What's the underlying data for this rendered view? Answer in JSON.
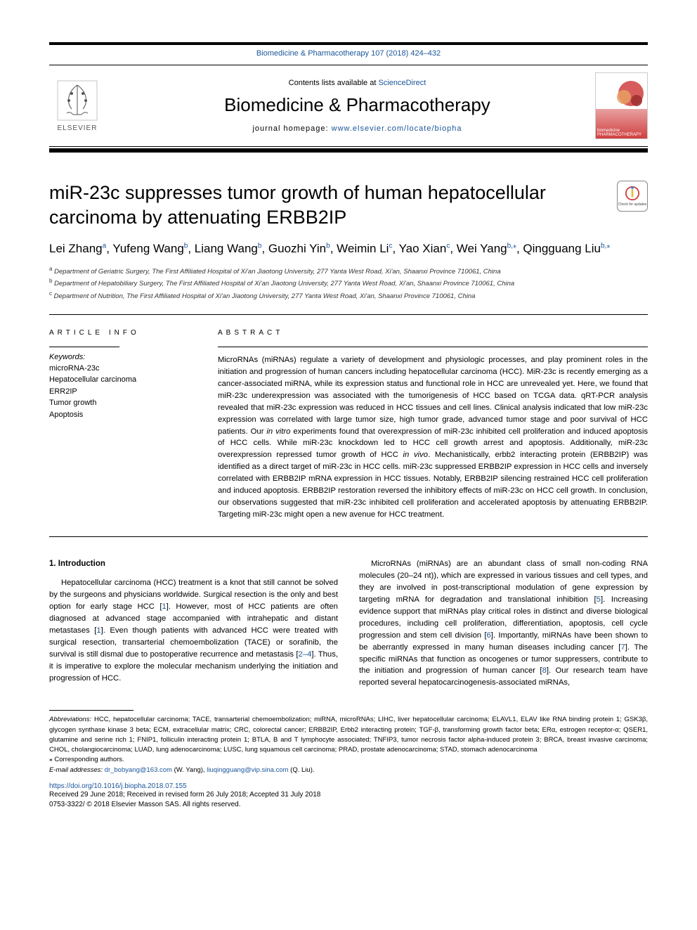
{
  "journal_ref": {
    "prefix": "Biomedicine & Pharmacotherapy 107 (2018) 424–432",
    "link_text": "Biomedicine & Pharmacotherapy 107 (2018) 424–432"
  },
  "header": {
    "contents_prefix": "Contents lists available at ",
    "contents_link": "ScienceDirect",
    "journal_title": "Biomedicine & Pharmacotherapy",
    "homepage_prefix": "journal homepage: ",
    "homepage_link": "www.elsevier.com/locate/biopha",
    "elsevier_label": "ELSEVIER",
    "cover_label": "biomedicine PHARMACOTHERAPY"
  },
  "check_updates_label": "Check for updates",
  "article": {
    "title": "miR-23c suppresses tumor growth of human hepatocellular carcinoma by attenuating ERBB2IP",
    "authors_html": "Lei Zhang<span class='sup'>a</span>, Yufeng Wang<span class='sup'>b</span>, Liang Wang<span class='sup'>b</span>, Guozhi Yin<span class='sup'>b</span>, Weimin Li<span class='sup'>c</span>, Yao Xian<span class='sup'>c</span>, Wei Yang<span class='sup'>b,</span><span class='sup star'>⁎</span>, Qingguang Liu<span class='sup'>b,</span><span class='sup star'>⁎</span>",
    "affiliations": [
      {
        "label": "a",
        "text": "Department of Geriatric Surgery, The First Affiliated Hospital of Xi'an Jiaotong University, 277 Yanta West Road, Xi'an, Shaanxi Province 710061, China"
      },
      {
        "label": "b",
        "text": "Department of Hepatobiliary Surgery, The First Affiliated Hospital of Xi'an Jiaotong University, 277 Yanta West Road, Xi'an, Shaanxi Province 710061, China"
      },
      {
        "label": "c",
        "text": "Department of Nutrition, The First Affiliated Hospital of Xi'an Jiaotong University, 277 Yanta West Road, Xi'an, Shaanxi Province 710061, China"
      }
    ]
  },
  "article_info": {
    "label": "ARTICLE INFO",
    "keywords_label": "Keywords:",
    "keywords": [
      "microRNA-23c",
      "Hepatocellular carcinoma",
      "ERR2IP",
      "Tumor growth",
      "Apoptosis"
    ]
  },
  "abstract": {
    "label": "ABSTRACT",
    "text": "MicroRNAs (miRNAs) regulate a variety of development and physiologic processes, and play prominent roles in the initiation and progression of human cancers including hepatocellular carcinoma (HCC). MiR-23c is recently emerging as a cancer-associated miRNA, while its expression status and functional role in HCC are unrevealed yet. Here, we found that miR-23c underexpression was associated with the tumorigenesis of HCC based on TCGA data. qRT-PCR analysis revealed that miR-23c expression was reduced in HCC tissues and cell lines. Clinical analysis indicated that low miR-23c expression was correlated with large tumor size, high tumor grade, advanced tumor stage and poor survival of HCC patients. Our in vitro experiments found that overexpression of miR-23c inhibited cell proliferation and induced apoptosis of HCC cells. While miR-23c knockdown led to HCC cell growth arrest and apoptosis. Additionally, miR-23c overexpression repressed tumor growth of HCC in vivo. Mechanistically, erbb2 interacting protein (ERBB2IP) was identified as a direct target of miR-23c in HCC cells. miR-23c suppressed ERBB2IP expression in HCC cells and inversely correlated with ERBB2IP mRNA expression in HCC tissues. Notably, ERBB2IP silencing restrained HCC cell proliferation and induced apoptosis. ERBB2IP restoration reversed the inhibitory effects of miR-23c on HCC cell growth. In conclusion, our observations suggested that miR-23c inhibited cell proliferation and accelerated apoptosis by attenuating ERBB2IP. Targeting miR-23c might open a new avenue for HCC treatment."
  },
  "body": {
    "section_number": "1.",
    "section_title": "Introduction",
    "col1": "Hepatocellular carcinoma (HCC) treatment is a knot that still cannot be solved by the surgeons and physicians worldwide. Surgical resection is the only and best option for early stage HCC [1]. However, most of HCC patients are often diagnosed at advanced stage accompanied with intrahepatic and distant metastases [1]. Even though patients with advanced HCC were treated with surgical resection, transarterial chemoembolization (TACE) or sorafinib, the survival is still dismal due to postoperative recurrence and metastasis [2–4]. Thus, it is imperative to explore the molecular mechanism underlying the initiation and progression of HCC.",
    "col2": "MicroRNAs (miRNAs) are an abundant class of small non-coding RNA molecules (20–24 nt)), which are expressed in various tissues and cell types, and they are involved in post-transcriptional modulation of gene expression by targeting mRNA for degradation and translational inhibition [5]. Increasing evidence support that miRNAs play critical roles in distinct and diverse biological procedures, including cell proliferation, differentiation, apoptosis, cell cycle progression and stem cell division [6]. Importantly, miRNAs have been shown to be aberrantly expressed in many human diseases including cancer [7]. The specific miRNAs that function as oncogenes or tumor suppressers, contribute to the initiation and progression of human cancer [8]. Our research team have reported several hepatocarcinogenesis-associated miRNAs,",
    "refs": {
      "r1": "1",
      "r2_4": "2–4",
      "r5": "5",
      "r6": "6",
      "r7": "7",
      "r8": "8"
    }
  },
  "footnotes": {
    "abbrev_label": "Abbreviations:",
    "abbrev_text": " HCC, hepatocellular carcinoma; TACE, transarterial chemoembolization; miRNA, microRNAs; LIHC, liver hepatocellular carcinoma; ELAVL1, ELAV like RNA binding protein 1; GSK3β, glycogen synthase kinase 3 beta; ECM, extracellular matrix; CRC, colorectal cancer; ERBB2IP, Erbb2 interacting protein; TGF-β, transforming growth factor beta; ERα, estrogen receptor-α; QSER1, glutamine and serine rich 1; FNIP1, folliculin interacting protein 1; BTLA, B and T lymphocyte associated; TNFIP3, tumor necrosis factor alpha-induced protein 3; BRCA, breast invasive carcinoma; CHOL, cholangiocarcinoma; LUAD, lung adenocarcinoma; LUSC, lung squamous cell carcinoma; PRAD, prostate adenocarcinoma; STAD, stomach adenocarcinoma",
    "corresponding": "Corresponding authors.",
    "email_label": "E-mail addresses: ",
    "email1": "dr_bobyang@163.com",
    "email1_who": " (W. Yang), ",
    "email2": "liuqingguang@vip.sina.com",
    "email2_who": " (Q. Liu)."
  },
  "footer": {
    "doi": "https://doi.org/10.1016/j.biopha.2018.07.155",
    "received": "Received 29 June 2018; Received in revised form 26 July 2018; Accepted 31 July 2018",
    "copyright": "0753-3322/ © 2018 Elsevier Masson SAS. All rights reserved."
  },
  "colors": {
    "link": "#1a5599",
    "text": "#000000"
  }
}
